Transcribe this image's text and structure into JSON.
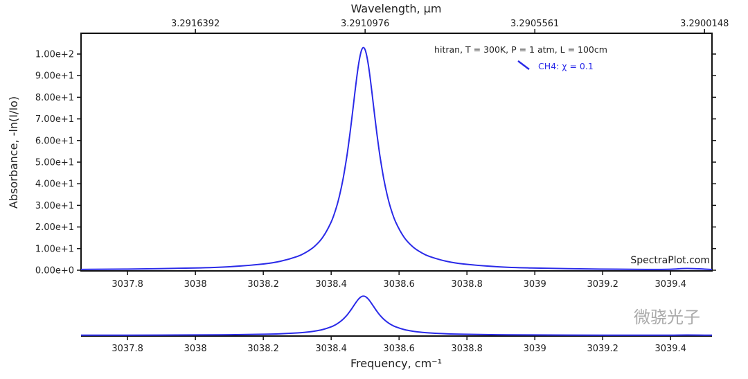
{
  "chart_data": {
    "type": "line",
    "xlabel": "Frequency, cm⁻¹",
    "x2label": "Wavelength, μm",
    "ylabel": "Absorbance, -ln(I/Io)",
    "annotation": "hitran, T = 300K, P = 1 atm, L = 100cm",
    "credit": "SpectraPlot.com",
    "watermark": "微骁光子",
    "legend_position": "top-right",
    "color": "#2a2ae8",
    "xlim": [
      3037.663,
      3039.522
    ],
    "ylim": [
      0,
      103.5
    ],
    "x_ticks": [
      "3037.8",
      "3038",
      "3038.2",
      "3038.4",
      "3038.6",
      "3038.8",
      "3039",
      "3039.2",
      "3039.4"
    ],
    "x2_ticks": [
      "3.2916392",
      "3.2910976",
      "3.2905561",
      "3.2900148"
    ],
    "y_ticks": [
      "0.00e+0",
      "1.00e+1",
      "2.00e+1",
      "3.00e+1",
      "4.00e+1",
      "5.00e+1",
      "6.00e+1",
      "7.00e+1",
      "8.00e+1",
      "9.00e+1",
      "1.00e+2"
    ],
    "series": [
      {
        "name": "CH4: χ = 0.1",
        "x": [
          3037.663,
          3037.8,
          3038.0,
          3038.1,
          3038.2,
          3038.25,
          3038.3,
          3038.325,
          3038.35,
          3038.375,
          3038.4,
          3038.415,
          3038.425,
          3038.435,
          3038.445,
          3038.45,
          3038.455,
          3038.46,
          3038.465,
          3038.47,
          3038.475,
          3038.48,
          3038.485,
          3038.49,
          3038.495,
          3038.5,
          3038.505,
          3038.51,
          3038.515,
          3038.52,
          3038.525,
          3038.53,
          3038.535,
          3038.54,
          3038.545,
          3038.555,
          3038.565,
          3038.575,
          3038.59,
          3038.615,
          3038.64,
          3038.665,
          3038.69,
          3038.74,
          3038.79,
          3038.89,
          3038.99,
          3039.19,
          3039.327,
          3039.4,
          3039.45,
          3039.522
        ],
        "y": [
          0.37,
          0.53,
          1.04,
          1.62,
          2.88,
          4.12,
          6.35,
          8.2,
          10.9,
          15.2,
          22.3,
          28.9,
          34.8,
          42.2,
          51.5,
          56.9,
          62.8,
          69.1,
          75.7,
          82.4,
          88.8,
          94.5,
          99.0,
          102.0,
          103.0,
          102.0,
          99.0,
          94.5,
          88.8,
          82.4,
          75.7,
          69.1,
          62.8,
          56.9,
          51.5,
          42.2,
          34.8,
          28.9,
          22.3,
          15.2,
          10.9,
          8.2,
          6.35,
          4.12,
          2.88,
          1.62,
          1.04,
          0.53,
          0.37,
          0.45,
          0.8,
          0.35
        ]
      }
    ]
  }
}
